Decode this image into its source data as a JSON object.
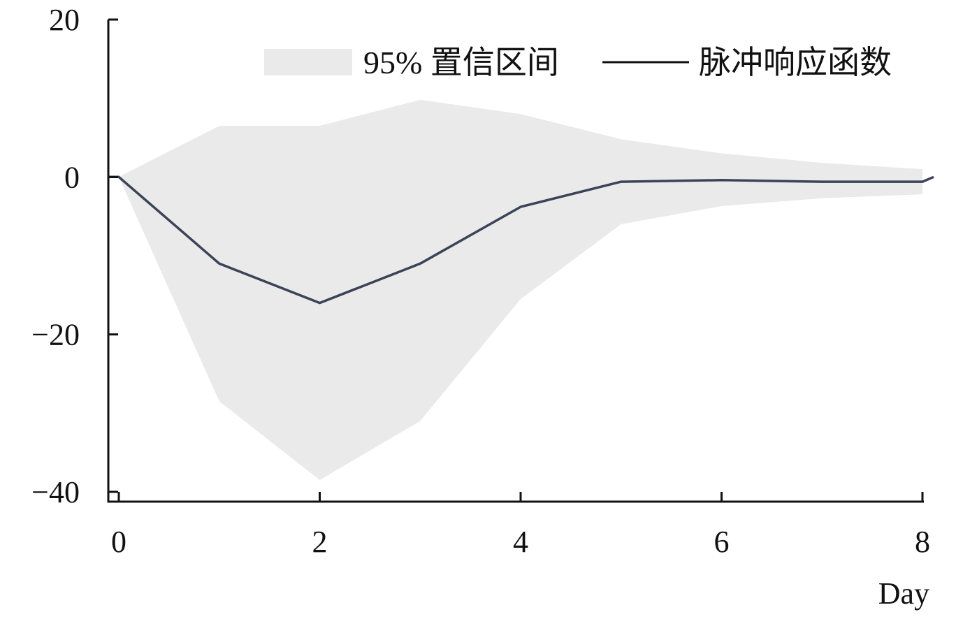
{
  "chart_data": {
    "type": "line",
    "title": "",
    "xlabel": "Day",
    "ylabel": "",
    "xlim": [
      0,
      8
    ],
    "ylim": [
      -40,
      20
    ],
    "x_ticks": [
      0,
      2,
      4,
      6,
      8
    ],
    "y_ticks": [
      20,
      0,
      -20,
      -40
    ],
    "y_tick_labels": [
      "20",
      "0",
      "−20",
      "−40"
    ],
    "grid": false,
    "legend_position": "top-right",
    "legend": {
      "band_label": "95% 置信区间",
      "line_label": "脉冲响应函数"
    },
    "x": [
      0,
      1,
      2,
      3,
      4,
      5,
      6,
      7,
      8
    ],
    "series": [
      {
        "name": "脉冲响应函数",
        "values": [
          0,
          -11,
          -16,
          -11,
          -3.8,
          -0.6,
          -0.4,
          -0.6,
          -0.6
        ]
      }
    ],
    "band": {
      "name": "95% 置信区间",
      "upper": [
        0,
        6.5,
        6.5,
        9.8,
        8.0,
        4.8,
        3.0,
        1.8,
        1.0
      ],
      "lower": [
        0,
        -28.5,
        -38.5,
        -31.0,
        -15.5,
        -6.0,
        -3.7,
        -2.7,
        -2.2
      ]
    },
    "colors": {
      "band": "#ebeaeb",
      "line": "#3b4358",
      "axis": "#111111"
    }
  }
}
